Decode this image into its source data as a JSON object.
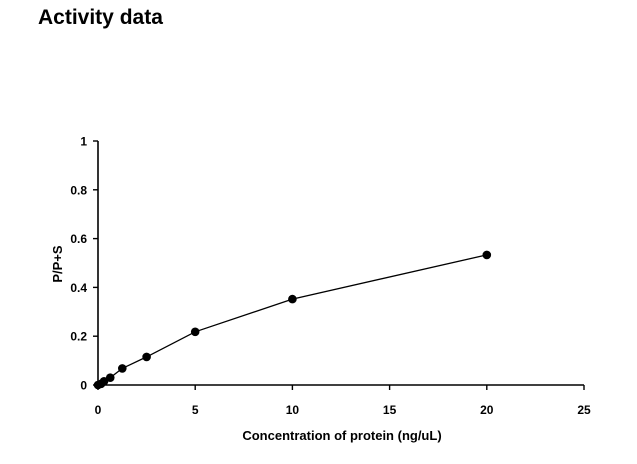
{
  "page": {
    "title": "Activity data"
  },
  "chart_data": {
    "type": "scatter",
    "title": "",
    "xlabel": "Concentration of protein (ng/uL)",
    "ylabel": "P/P+S",
    "xlim": [
      0,
      25
    ],
    "ylim": [
      0,
      1
    ],
    "x_ticks": [
      0,
      5,
      10,
      15,
      20,
      25
    ],
    "y_ticks": [
      0,
      0.2,
      0.4,
      0.6,
      0.8,
      1
    ],
    "x_tick_labels": [
      "0",
      "5",
      "10",
      "15",
      "20",
      "25"
    ],
    "y_tick_labels": [
      "0",
      "0.2",
      "0.4",
      "0.6",
      "0.8",
      "1"
    ],
    "grid": false,
    "legend": "none",
    "connect_points": true,
    "marker_color": "#000000",
    "line_color": "#000000",
    "series": [
      {
        "x": [
          0,
          0.16,
          0.31,
          0.63,
          1.25,
          2.5,
          5,
          10,
          20
        ],
        "y": [
          0,
          0.005,
          0.015,
          0.03,
          0.068,
          0.115,
          0.218,
          0.352,
          0.533
        ]
      }
    ]
  }
}
